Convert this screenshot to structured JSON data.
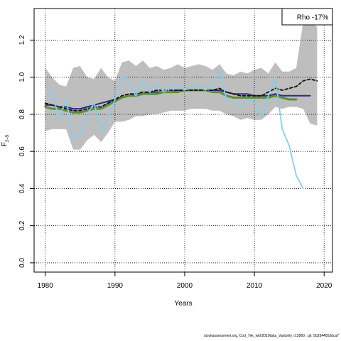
{
  "chart_data": {
    "type": "line",
    "title": "",
    "xlabel": "Years",
    "ylabel": "F2–5",
    "ylabel_main": "F",
    "ylabel_sub": "2–5",
    "xlim": [
      1978.4,
      2021.2
    ],
    "ylim": [
      -0.05,
      1.37
    ],
    "xticks": [
      1980,
      1990,
      2000,
      2010,
      2020
    ],
    "yticks": [
      0.0,
      0.2,
      0.4,
      0.6,
      0.8,
      1.0,
      1.2
    ],
    "ytick_labels": [
      "0.0",
      "0.2",
      "0.4",
      "0.6",
      "0.8",
      "1.0",
      "1.2"
    ],
    "grid": true,
    "legend": {
      "position": "top-right",
      "label": "Rho -17%"
    },
    "band": {
      "color": "#bebebe",
      "x": [
        1980,
        1981,
        1982,
        1983,
        1984,
        1985,
        1986,
        1987,
        1988,
        1989,
        1990,
        1991,
        1992,
        1993,
        1994,
        1995,
        1996,
        1997,
        1998,
        1999,
        2000,
        2001,
        2002,
        2003,
        2004,
        2005,
        2006,
        2007,
        2008,
        2009,
        2010,
        2011,
        2012,
        2013,
        2014,
        2015,
        2016,
        2017,
        2018,
        2019
      ],
      "upper": [
        1.05,
        1.0,
        0.96,
        0.95,
        1.05,
        1.06,
        1.0,
        0.99,
        1.05,
        1.0,
        0.98,
        1.08,
        1.09,
        1.06,
        1.09,
        1.05,
        1.06,
        1.04,
        1.05,
        1.07,
        1.05,
        1.06,
        1.07,
        1.06,
        1.04,
        1.07,
        1.02,
        1.01,
        1.03,
        1.02,
        1.04,
        1.05,
        1.02,
        1.08,
        1.03,
        1.03,
        1.05,
        1.3,
        1.3,
        1.27
      ],
      "lower": [
        0.71,
        0.72,
        0.72,
        0.72,
        0.61,
        0.61,
        0.66,
        0.69,
        0.65,
        0.7,
        0.76,
        0.76,
        0.77,
        0.79,
        0.79,
        0.8,
        0.8,
        0.81,
        0.82,
        0.82,
        0.82,
        0.83,
        0.83,
        0.83,
        0.82,
        0.82,
        0.8,
        0.79,
        0.77,
        0.78,
        0.77,
        0.77,
        0.8,
        0.84,
        0.83,
        0.84,
        0.84,
        0.83,
        0.75,
        0.74
      ]
    },
    "series": [
      {
        "color": "#29317a",
        "width": 2,
        "dash": "",
        "x": [
          1980,
          1981,
          1982,
          1983,
          1984,
          1985,
          1986,
          1987,
          1988,
          1989,
          1990,
          1991,
          1992,
          1993,
          1994,
          1995,
          1996,
          1997,
          1998,
          1999,
          2000,
          2001,
          2002,
          2003,
          2004,
          2005,
          2006,
          2007,
          2008,
          2009,
          2010,
          2011,
          2012,
          2013,
          2014,
          2015,
          2016,
          2017,
          2018
        ],
        "y": [
          0.85,
          0.85,
          0.84,
          0.84,
          0.83,
          0.83,
          0.84,
          0.85,
          0.86,
          0.87,
          0.88,
          0.89,
          0.9,
          0.91,
          0.91,
          0.92,
          0.92,
          0.92,
          0.92,
          0.93,
          0.93,
          0.93,
          0.93,
          0.93,
          0.93,
          0.93,
          0.92,
          0.91,
          0.91,
          0.91,
          0.9,
          0.9,
          0.9,
          0.91,
          0.9,
          0.9,
          0.9,
          0.9,
          0.9
        ]
      },
      {
        "color": "#5c8f3a",
        "width": 3,
        "dash": "",
        "x": [
          1980,
          1981,
          1982,
          1983,
          1984,
          1985,
          1986,
          1987,
          1988,
          1989,
          1990,
          1991,
          1992,
          1993,
          1994,
          1995,
          1996,
          1997,
          1998,
          1999,
          2000,
          2001,
          2002,
          2003,
          2004,
          2005,
          2006,
          2007,
          2008,
          2009,
          2010,
          2011,
          2012,
          2013,
          2014,
          2015,
          2016
        ],
        "y": [
          0.84,
          0.83,
          0.83,
          0.82,
          0.81,
          0.81,
          0.82,
          0.83,
          0.83,
          0.85,
          0.87,
          0.89,
          0.9,
          0.9,
          0.91,
          0.91,
          0.91,
          0.92,
          0.92,
          0.92,
          0.93,
          0.93,
          0.93,
          0.93,
          0.92,
          0.92,
          0.9,
          0.89,
          0.89,
          0.89,
          0.89,
          0.89,
          0.89,
          0.9,
          0.89,
          0.88,
          0.88
        ]
      },
      {
        "color": "#111111",
        "width": 1.8,
        "dash": "4,3",
        "x": [
          1980,
          1981,
          1982,
          1983,
          1984,
          1985,
          1986,
          1987,
          1988,
          1989,
          1990,
          1991,
          1992,
          1993,
          1994,
          1995,
          1996,
          1997,
          1998,
          1999,
          2000,
          2001,
          2002,
          2003,
          2004,
          2005,
          2006,
          2007,
          2008,
          2009,
          2010,
          2011,
          2012,
          2013,
          2014,
          2015,
          2016,
          2017,
          2018,
          2019
        ],
        "y": [
          0.86,
          0.85,
          0.84,
          0.83,
          0.82,
          0.82,
          0.83,
          0.84,
          0.84,
          0.86,
          0.88,
          0.9,
          0.91,
          0.91,
          0.92,
          0.92,
          0.93,
          0.93,
          0.93,
          0.93,
          0.93,
          0.93,
          0.93,
          0.93,
          0.93,
          0.94,
          0.92,
          0.91,
          0.9,
          0.9,
          0.9,
          0.9,
          0.92,
          0.94,
          0.93,
          0.94,
          0.95,
          0.98,
          0.99,
          0.98
        ]
      },
      {
        "color": "#87ceeb",
        "width": 1.8,
        "dash": "",
        "x": [
          1980,
          1981,
          1982,
          1983,
          1984,
          1985,
          1986,
          1987,
          1988,
          1989,
          1990,
          1991,
          1992,
          1993,
          1994,
          1995,
          1996,
          1997,
          1998,
          1999,
          2000,
          2001,
          2002,
          2003,
          2004,
          2005,
          2006,
          2007,
          2008,
          2009,
          2010,
          2011,
          2012,
          2013,
          2014,
          2015,
          2016,
          2017
        ],
        "y": [
          0.93,
          0.91,
          0.78,
          0.88,
          0.67,
          0.7,
          0.8,
          0.86,
          0.71,
          0.78,
          0.88,
          1.01,
          0.97,
          0.9,
          0.98,
          0.92,
          0.97,
          0.92,
          0.95,
          0.96,
          0.93,
          0.95,
          0.96,
          0.93,
          0.96,
          1.04,
          0.88,
          0.86,
          0.84,
          0.88,
          0.87,
          0.79,
          0.9,
          1.0,
          0.72,
          0.63,
          0.47,
          0.4
        ]
      }
    ]
  },
  "footer": "stockassessment.org, Cod_7ek_with2019data_Vastonly, r12860 , git: 5b3344053dca7"
}
